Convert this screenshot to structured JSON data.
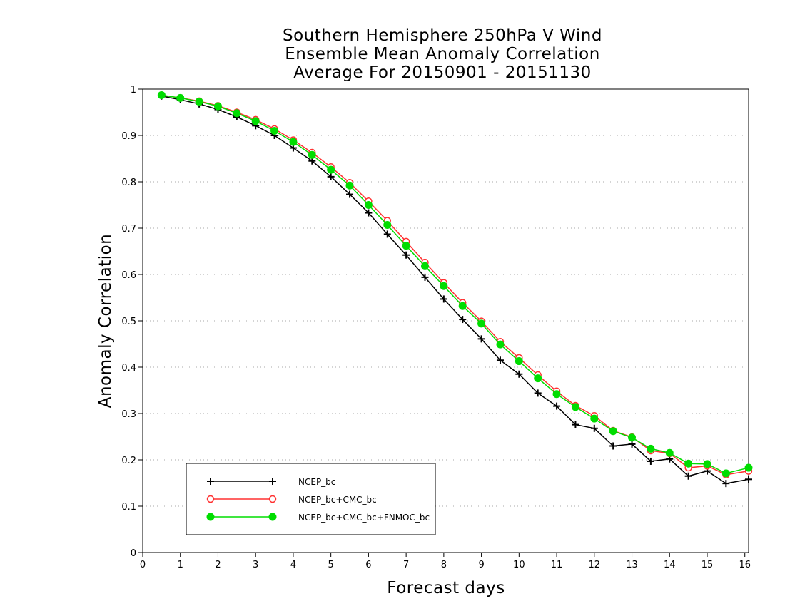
{
  "chart_data": {
    "type": "line",
    "title": [
      "Southern Hemisphere 250hPa V Wind",
      "Ensemble Mean Anomaly Correlation",
      "Average For 20150901 - 20151130"
    ],
    "xlabel": "Forecast days",
    "ylabel": "Anomaly Correlation",
    "xlim": [
      0,
      16.1
    ],
    "ylim": [
      0,
      1
    ],
    "xticks": [
      0,
      1,
      2,
      3,
      4,
      5,
      6,
      7,
      8,
      9,
      10,
      11,
      12,
      13,
      14,
      15,
      16
    ],
    "yticks": [
      0,
      0.1,
      0.2,
      0.3,
      0.4,
      0.5,
      0.6,
      0.7,
      0.8,
      0.9,
      1
    ],
    "ytick_labels": [
      "0",
      "0.1",
      "0.2",
      "0.3",
      "0.4",
      "0.5",
      "0.6",
      "0.7",
      "0.8",
      "0.9",
      "1"
    ],
    "grid": "horizontal dotted",
    "legend_position": "bottom-left",
    "x": [
      0.5,
      1,
      1.5,
      2,
      2.5,
      3,
      3.5,
      4,
      4.5,
      5,
      5.5,
      6,
      6.5,
      7,
      7.5,
      8,
      8.5,
      9,
      9.5,
      10,
      10.5,
      11,
      11.5,
      12,
      12.5,
      13,
      13.5,
      14,
      14.5,
      15,
      15.5,
      16.1
    ],
    "series": [
      {
        "name": "NCEP_bc",
        "color": "#000000",
        "marker": "plus",
        "values": [
          0.985,
          0.977,
          0.968,
          0.956,
          0.94,
          0.921,
          0.9,
          0.873,
          0.845,
          0.811,
          0.773,
          0.733,
          0.687,
          0.642,
          0.594,
          0.547,
          0.503,
          0.461,
          0.415,
          0.385,
          0.344,
          0.316,
          0.276,
          0.268,
          0.23,
          0.234,
          0.197,
          0.202,
          0.165,
          0.176,
          0.149,
          0.158
        ]
      },
      {
        "name": "NCEP_bc+CMC_bc",
        "color": "#ff3030",
        "marker": "open-circle",
        "values": [
          0.987,
          0.981,
          0.974,
          0.964,
          0.95,
          0.934,
          0.914,
          0.89,
          0.863,
          0.832,
          0.798,
          0.758,
          0.716,
          0.671,
          0.626,
          0.582,
          0.539,
          0.499,
          0.455,
          0.42,
          0.383,
          0.348,
          0.317,
          0.295,
          0.263,
          0.249,
          0.22,
          0.214,
          0.183,
          0.187,
          0.168,
          0.176
        ]
      },
      {
        "name": "NCEP_bc+CMC_bc+FNMOC_bc",
        "color": "#00dd00",
        "marker": "filled-circle",
        "values": [
          0.987,
          0.981,
          0.973,
          0.963,
          0.948,
          0.931,
          0.91,
          0.886,
          0.858,
          0.826,
          0.792,
          0.75,
          0.707,
          0.662,
          0.618,
          0.575,
          0.532,
          0.494,
          0.449,
          0.413,
          0.376,
          0.342,
          0.314,
          0.289,
          0.262,
          0.248,
          0.224,
          0.215,
          0.192,
          0.191,
          0.171,
          0.183
        ]
      }
    ]
  }
}
